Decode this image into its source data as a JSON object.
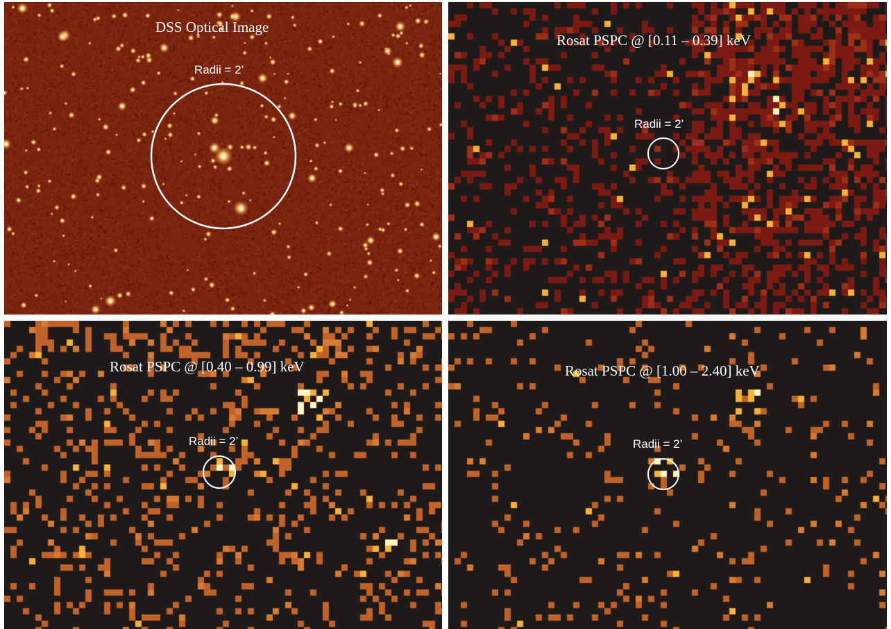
{
  "colors": {
    "divider": "#ffffff",
    "optical_background": "#7a2410",
    "xray_background": "#1e1a1a",
    "soft_band_pixel": "#7a1a12",
    "mid_band_pixel": "#c0622a",
    "bright_pixel": "#f6b238",
    "circle": "#ffffff"
  },
  "panels": [
    {
      "id": "optical",
      "title": "DSS Optical Image",
      "radii_label": "Radii = 2’",
      "type": "optical"
    },
    {
      "id": "pspc-soft",
      "title": "Rosat PSPC  @ [0.11 – 0.39] keV",
      "radii_label": "Radii = 2’",
      "type": "xray-soft"
    },
    {
      "id": "pspc-mid",
      "title": "Rosat PSPC @ [0.40 – 0.99] keV",
      "radii_label": "Radii = 2’",
      "type": "xray-mid"
    },
    {
      "id": "pspc-hard",
      "title": "Rosat PSPC @ [1.00 – 2.40] keV",
      "radii_label": "Radii = 2’",
      "type": "xray-hard"
    }
  ]
}
